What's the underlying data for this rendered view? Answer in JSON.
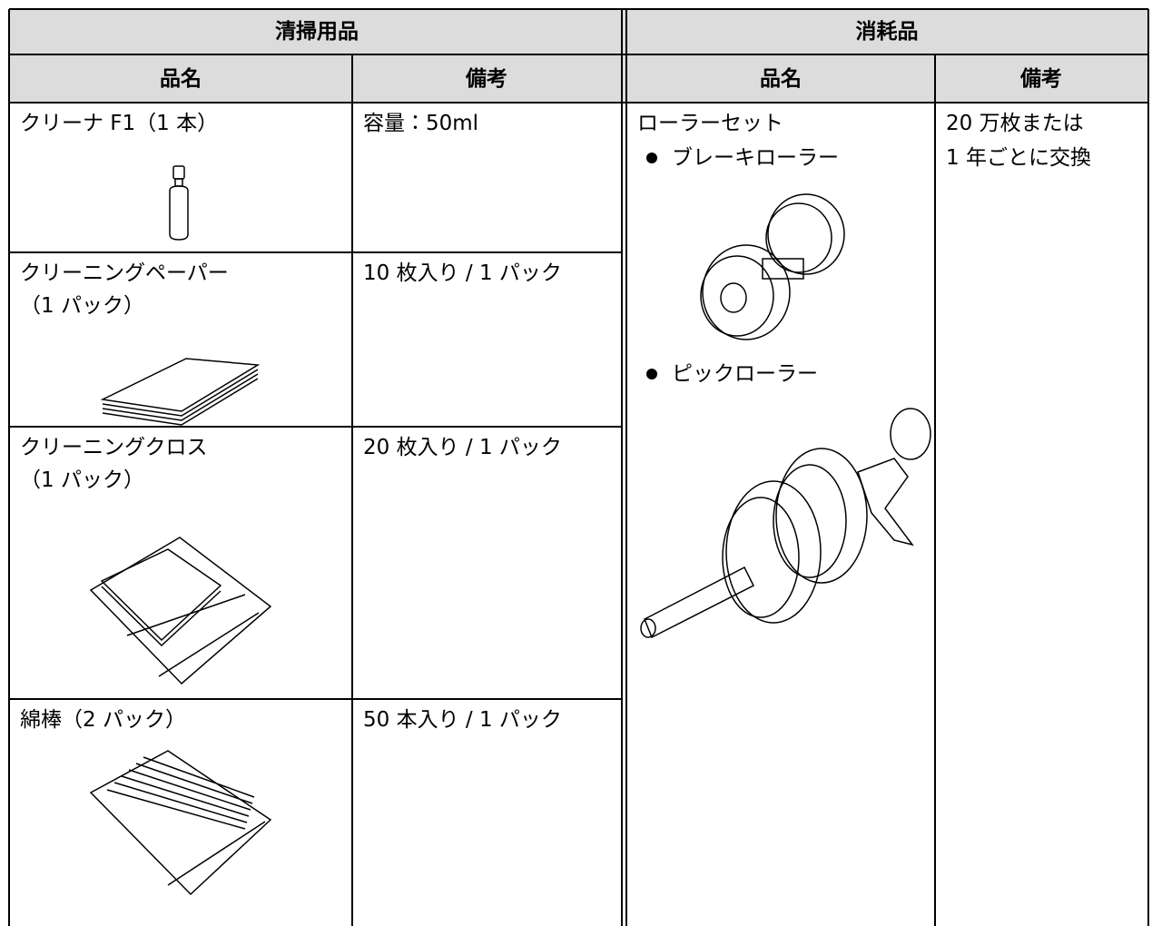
{
  "table": {
    "groups": [
      "清掃用品",
      "消耗品"
    ],
    "headers": [
      "品名",
      "備考",
      "品名",
      "備考"
    ],
    "cleaning": [
      {
        "name": [
          "クリーナ F1（1 本）"
        ],
        "note": "容量：50ml"
      },
      {
        "name": [
          "クリーニングペーパー",
          "（1 パック）"
        ],
        "note": "10 枚入り / 1 パック"
      },
      {
        "name": [
          "クリーニングクロス",
          "（1 パック）"
        ],
        "note": "20 枚入り / 1 パック"
      },
      {
        "name": [
          "綿棒（2 パック）"
        ],
        "note": "50 本入り / 1 パック"
      }
    ],
    "consumables": {
      "name": "ローラーセット",
      "items": [
        "ブレーキローラー",
        "ピックローラー"
      ],
      "note": [
        "20 万枚または",
        "1 年ごとに交換"
      ]
    }
  }
}
